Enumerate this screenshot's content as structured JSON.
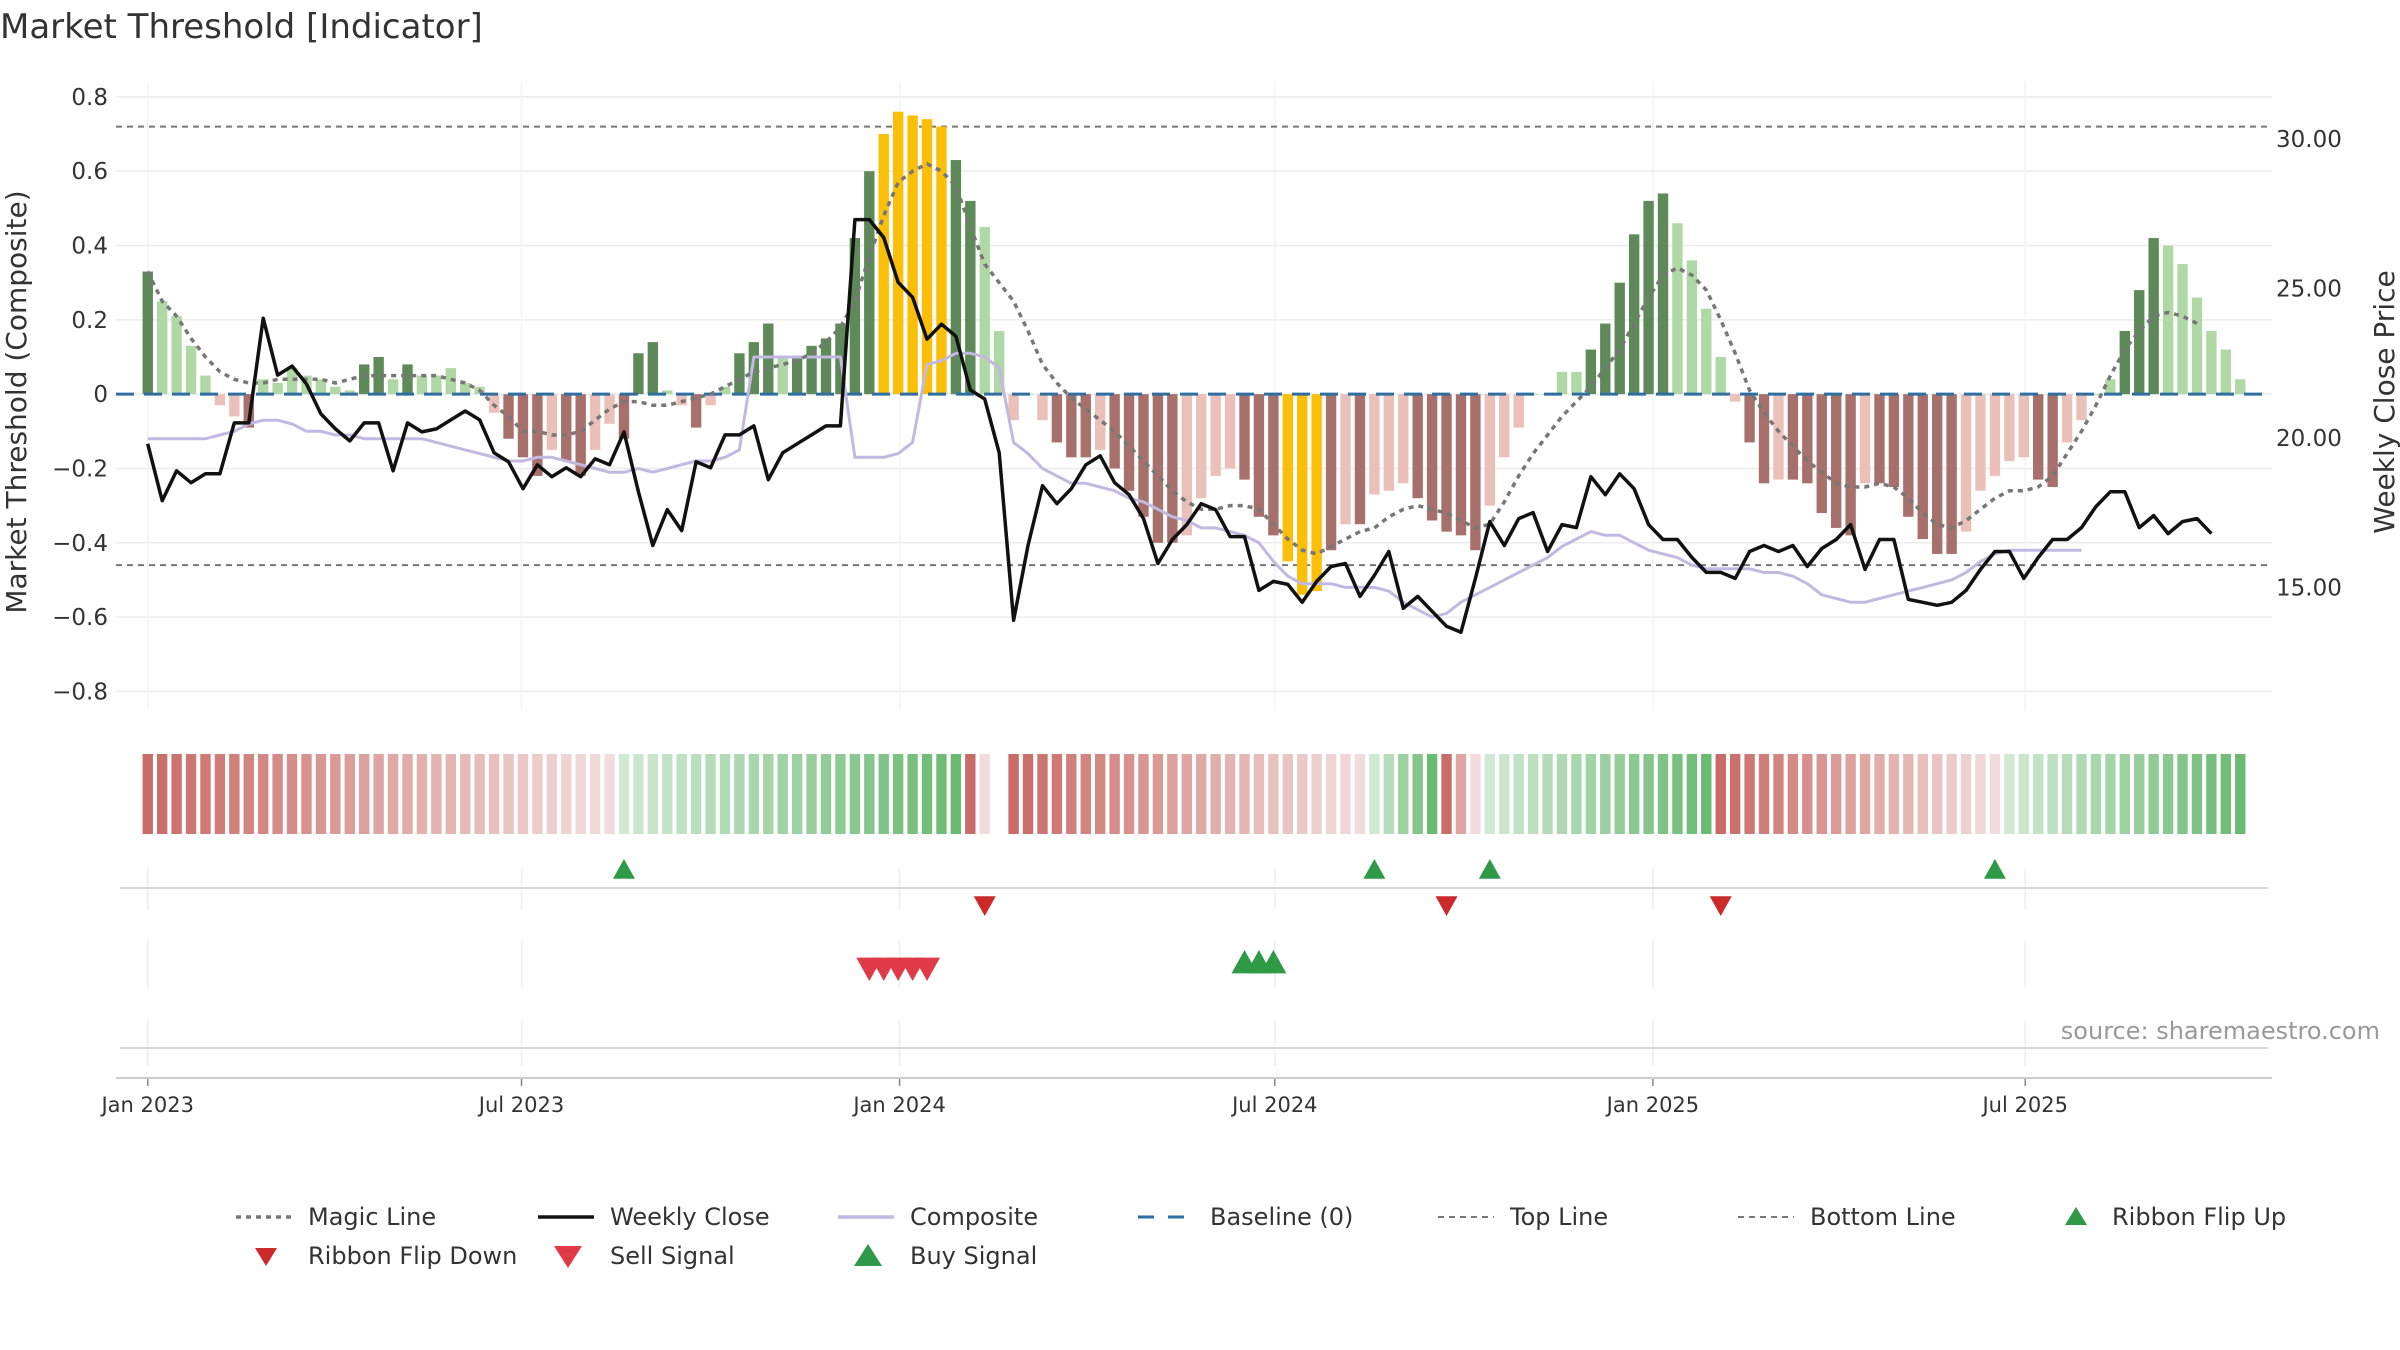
{
  "chart_data": {
    "type": "bar",
    "title": "Market Threshold [Indicator]",
    "ylabel_left": "Market Threshold (Composite)",
    "ylabel_right": "Weekly Close Price",
    "source": "source: sharemaestro.com",
    "ylim_left": [
      -0.85,
      0.84
    ],
    "ylim_right": [
      10.9,
      31.9
    ],
    "yticks_left": [
      0.8,
      0.6,
      0.4,
      0.2,
      0,
      -0.2,
      -0.4,
      -0.6,
      -0.8
    ],
    "yticks_left_labels": [
      "0.8",
      "0.6",
      "0.4",
      "0.2",
      "0",
      "−0.2",
      "−0.4",
      "−0.6",
      "−0.8"
    ],
    "yticks_right": [
      30,
      25,
      20,
      15
    ],
    "yticks_right_labels": [
      "30.00",
      "25.00",
      "20.00",
      "15.00"
    ],
    "x_range": [
      -2.2,
      147.2
    ],
    "x_ticks": [
      {
        "label": "Jan 2023",
        "x": 0
      },
      {
        "label": "Jul 2023",
        "x": 25.9
      },
      {
        "label": "Jan 2024",
        "x": 52.1
      },
      {
        "label": "Jul 2024",
        "x": 78.1
      },
      {
        "label": "Jan 2025",
        "x": 104.3
      },
      {
        "label": "Jul 2025",
        "x": 130.1
      }
    ],
    "top_line": 0.72,
    "bottom_line": -0.46,
    "baseline": 0,
    "composite": [
      0.33,
      0.25,
      0.21,
      0.13,
      0.05,
      -0.03,
      -0.06,
      -0.09,
      0.04,
      0.03,
      0.07,
      0.05,
      0.04,
      0.02,
      0.01,
      0.08,
      0.1,
      0.04,
      0.08,
      0.05,
      0.05,
      0.07,
      0.03,
      0.02,
      -0.05,
      -0.12,
      -0.17,
      -0.22,
      -0.15,
      -0.18,
      -0.22,
      -0.15,
      -0.08,
      -0.12,
      0.11,
      0.14,
      0.01,
      -0.03,
      -0.09,
      -0.03,
      0.02,
      0.11,
      0.14,
      0.19,
      0.1,
      0.1,
      0.13,
      0.15,
      0.19,
      0.42,
      0.6,
      0.7,
      0.76,
      0.75,
      0.74,
      0.72,
      0.63,
      0.52,
      0.45,
      0.17,
      -0.07,
      0,
      -0.07,
      -0.13,
      -0.17,
      -0.17,
      -0.15,
      -0.2,
      -0.26,
      -0.33,
      -0.4,
      -0.4,
      -0.38,
      -0.28,
      -0.22,
      -0.2,
      -0.23,
      -0.33,
      -0.38,
      -0.45,
      -0.54,
      -0.53,
      -0.42,
      -0.35,
      -0.35,
      -0.27,
      -0.26,
      -0.24,
      -0.28,
      -0.34,
      -0.37,
      -0.38,
      -0.42,
      -0.3,
      -0.17,
      -0.09,
      0,
      0,
      0.06,
      0.06,
      0.12,
      0.19,
      0.3,
      0.43,
      0.52,
      0.54,
      0.46,
      0.36,
      0.23,
      0.1,
      -0.02,
      -0.13,
      -0.24,
      -0.23,
      -0.23,
      -0.24,
      -0.32,
      -0.36,
      -0.38,
      -0.24,
      -0.24,
      -0.25,
      -0.33,
      -0.39,
      -0.43,
      -0.43,
      -0.37,
      -0.26,
      -0.22,
      -0.18,
      -0.17,
      -0.23,
      -0.25,
      -0.13,
      -0.07,
      0,
      0.04,
      0.17,
      0.28,
      0.42,
      0.4,
      0.35,
      0.26,
      0.17,
      0.12,
      0.04
    ],
    "weekly_close": [
      19.8,
      17.9,
      18.9,
      18.5,
      18.8,
      18.8,
      20.5,
      20.5,
      24,
      22.1,
      22.4,
      21.8,
      20.8,
      20.3,
      19.9,
      20.5,
      20.5,
      18.9,
      20.5,
      20.2,
      20.3,
      20.6,
      20.9,
      20.6,
      19.5,
      19.2,
      18.3,
      19.1,
      18.7,
      19.0,
      18.7,
      19.3,
      19.1,
      20.2,
      18.2,
      16.4,
      17.6,
      16.9,
      19.2,
      19.0,
      20.1,
      20.1,
      20.4,
      18.6,
      19.5,
      19.8,
      20.1,
      20.4,
      20.4,
      27.3,
      27.3,
      26.7,
      25.2,
      24.7,
      23.3,
      23.8,
      23.4,
      21.6,
      21.3,
      19.5,
      13.9,
      16.4,
      18.4,
      17.8,
      18.3,
      19.1,
      19.4,
      18.5,
      18.1,
      17.3,
      15.8,
      16.6,
      17.1,
      17.8,
      17.6,
      16.7,
      16.7,
      14.9,
      15.2,
      15.1,
      14.5,
      15.2,
      15.7,
      15.8,
      14.7,
      15.4,
      16.2,
      14.3,
      14.7,
      14.2,
      13.7,
      13.5,
      15.3,
      17.2,
      16.4,
      17.3,
      17.5,
      16.2,
      17.1,
      17.0,
      18.7,
      18.1,
      18.8,
      18.3,
      17.1,
      16.6,
      16.6,
      16.0,
      15.5,
      15.5,
      15.3,
      16.2,
      16.4,
      16.2,
      16.4,
      15.7,
      16.3,
      16.6,
      17.1,
      15.6,
      16.6,
      16.6,
      14.6,
      14.5,
      14.4,
      14.5,
      14.9,
      15.6,
      16.2,
      16.2,
      15.3,
      16.0,
      16.6,
      16.6,
      17.0,
      17.7,
      18.2,
      18.2,
      17.0,
      17.4,
      16.8,
      17.2,
      17.3,
      16.8
    ],
    "composite_smooth": [
      -0.12,
      -0.12,
      -0.12,
      -0.12,
      -0.12,
      -0.11,
      -0.1,
      -0.08,
      -0.07,
      -0.07,
      -0.08,
      -0.1,
      -0.1,
      -0.11,
      -0.11,
      -0.12,
      -0.12,
      -0.12,
      -0.12,
      -0.12,
      -0.13,
      -0.14,
      -0.15,
      -0.16,
      -0.17,
      -0.18,
      -0.18,
      -0.17,
      -0.17,
      -0.18,
      -0.19,
      -0.2,
      -0.21,
      -0.21,
      -0.2,
      -0.21,
      -0.2,
      -0.19,
      -0.18,
      -0.18,
      -0.17,
      -0.15,
      0.1,
      0.1,
      0.1,
      0.1,
      0.1,
      0.1,
      0.1,
      -0.17,
      -0.17,
      -0.17,
      -0.16,
      -0.13,
      0.08,
      0.09,
      0.11,
      0.11,
      0.1,
      0.07,
      -0.13,
      -0.16,
      -0.2,
      -0.22,
      -0.24,
      -0.24,
      -0.25,
      -0.26,
      -0.28,
      -0.29,
      -0.31,
      -0.33,
      -0.34,
      -0.36,
      -0.36,
      -0.37,
      -0.38,
      -0.4,
      -0.45,
      -0.49,
      -0.51,
      -0.51,
      -0.51,
      -0.52,
      -0.52,
      -0.52,
      -0.53,
      -0.56,
      -0.58,
      -0.6,
      -0.59,
      -0.56,
      -0.54,
      -0.52,
      -0.5,
      -0.48,
      -0.46,
      -0.44,
      -0.41,
      -0.39,
      -0.37,
      -0.38,
      -0.38,
      -0.4,
      -0.42,
      -0.43,
      -0.44,
      -0.46,
      -0.47,
      -0.47,
      -0.47,
      -0.47,
      -0.48,
      -0.48,
      -0.49,
      -0.51,
      -0.54,
      -0.55,
      -0.56,
      -0.56,
      -0.55,
      -0.54,
      -0.53,
      -0.52,
      -0.51,
      -0.5,
      -0.48,
      -0.45,
      -0.43,
      -0.42,
      -0.42,
      -0.42,
      -0.42,
      -0.42,
      -0.42
    ],
    "magic_line": [
      0.33,
      0.25,
      0.21,
      0.15,
      0.1,
      0.06,
      0.04,
      0.03,
      0.03,
      0.04,
      0.04,
      0.04,
      0.04,
      0.03,
      0.04,
      0.05,
      0.05,
      0.05,
      0.05,
      0.05,
      0.05,
      0.04,
      0.03,
      0.01,
      -0.03,
      -0.06,
      -0.1,
      -0.1,
      -0.11,
      -0.11,
      -0.1,
      -0.07,
      -0.04,
      -0.02,
      -0.02,
      -0.03,
      -0.03,
      -0.02,
      -0.01,
      0,
      0.02,
      0.04,
      0.06,
      0.07,
      0.08,
      0.09,
      0.11,
      0.14,
      0.18,
      0.25,
      0.37,
      0.48,
      0.57,
      0.6,
      0.62,
      0.6,
      0.56,
      0.45,
      0.35,
      0.3,
      0.25,
      0.17,
      0.08,
      0.03,
      -0.01,
      -0.04,
      -0.07,
      -0.1,
      -0.14,
      -0.18,
      -0.22,
      -0.26,
      -0.29,
      -0.31,
      -0.31,
      -0.3,
      -0.3,
      -0.31,
      -0.35,
      -0.39,
      -0.42,
      -0.43,
      -0.41,
      -0.39,
      -0.37,
      -0.36,
      -0.33,
      -0.31,
      -0.3,
      -0.31,
      -0.32,
      -0.34,
      -0.36,
      -0.35,
      -0.29,
      -0.22,
      -0.16,
      -0.11,
      -0.06,
      -0.02,
      0.02,
      0.07,
      0.12,
      0.19,
      0.26,
      0.32,
      0.34,
      0.32,
      0.28,
      0.2,
      0.11,
      0.01,
      -0.05,
      -0.1,
      -0.14,
      -0.18,
      -0.21,
      -0.24,
      -0.25,
      -0.25,
      -0.24,
      -0.25,
      -0.28,
      -0.32,
      -0.35,
      -0.36,
      -0.34,
      -0.31,
      -0.28,
      -0.26,
      -0.26,
      -0.25,
      -0.22,
      -0.16,
      -0.1,
      -0.03,
      0.05,
      0.12,
      0.17,
      0.21,
      0.22,
      0.21,
      0.19
    ],
    "ribbon": [
      {
        "from": 0,
        "to": 32,
        "state": "down"
      },
      {
        "from": 33,
        "to": 56,
        "state": "up"
      },
      {
        "from": 57,
        "to": 58,
        "state": "down"
      },
      {
        "from": 60,
        "to": 84,
        "state": "down"
      },
      {
        "from": 85,
        "to": 89,
        "state": "up"
      },
      {
        "from": 90,
        "to": 92,
        "state": "down"
      },
      {
        "from": 93,
        "to": 108,
        "state": "up"
      },
      {
        "from": 109,
        "to": 128,
        "state": "down"
      },
      {
        "from": 129,
        "to": 145,
        "state": "up"
      }
    ],
    "ribbon_flip_up": [
      33,
      85,
      93,
      128
    ],
    "ribbon_flip_down": [
      58,
      90,
      109
    ],
    "sell_signal": [
      50,
      51,
      52,
      53,
      54
    ],
    "buy_signal": [
      76,
      77,
      78
    ],
    "legend": [
      {
        "key": "magic",
        "label": "Magic Line"
      },
      {
        "key": "close",
        "label": "Weekly Close"
      },
      {
        "key": "composite",
        "label": "Composite"
      },
      {
        "key": "baseline",
        "label": "Baseline (0)"
      },
      {
        "key": "top",
        "label": "Top Line"
      },
      {
        "key": "bottom",
        "label": "Bottom Line"
      },
      {
        "key": "flipup",
        "label": "Ribbon Flip Up"
      },
      {
        "key": "flipdown",
        "label": "Ribbon Flip Down"
      },
      {
        "key": "sell",
        "label": "Sell Signal"
      },
      {
        "key": "buy",
        "label": "Buy Signal"
      }
    ],
    "colors": {
      "pos_strong": "#5d8a58",
      "pos_light": "#afd8a5",
      "neg_strong": "#a8706b",
      "neg_light": "#ebc0b9",
      "extreme": "#fbbf08",
      "close": "#111111",
      "composite": "#c2b8e2",
      "magic": "#777777",
      "baseline": "#2e6ea1",
      "limits": "#777777",
      "ribbon_up": "#56b05f",
      "ribbon_down": "#c0524c",
      "flip_up": "#2e9a48",
      "flip_down": "#cc2a2a",
      "sell": "#e03a48",
      "buy": "#2e9a48"
    }
  }
}
